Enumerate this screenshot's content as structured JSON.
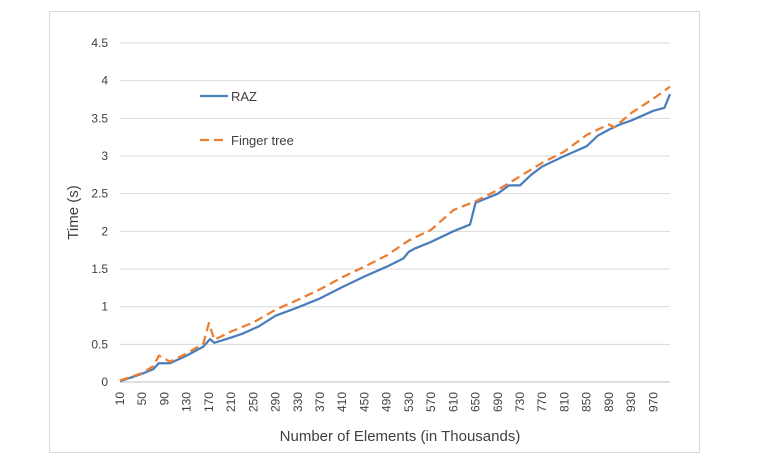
{
  "chart_data": {
    "type": "line",
    "title": "",
    "xlabel": "Number of Elements (in Thousands)",
    "ylabel": "Time (s)",
    "xlim": [
      10,
      1000
    ],
    "ylim": [
      0,
      4.5
    ],
    "yticks": [
      "0",
      "0.5",
      "1",
      "1.5",
      "2",
      "2.5",
      "3",
      "3.5",
      "4",
      "4.5"
    ],
    "xticks": [
      "10",
      "50",
      "90",
      "130",
      "170",
      "210",
      "250",
      "290",
      "330",
      "370",
      "410",
      "450",
      "490",
      "530",
      "570",
      "610",
      "650",
      "690",
      "730",
      "770",
      "810",
      "850",
      "890",
      "930",
      "970"
    ],
    "grid": "horizontal",
    "legend": "upper-left inside plot",
    "series": [
      {
        "name": "RAZ",
        "color": "#4a7ebb",
        "dash": "solid",
        "points": [
          [
            10,
            0.01
          ],
          [
            30,
            0.06
          ],
          [
            50,
            0.11
          ],
          [
            70,
            0.17
          ],
          [
            80,
            0.25
          ],
          [
            100,
            0.25
          ],
          [
            130,
            0.35
          ],
          [
            160,
            0.47
          ],
          [
            172,
            0.57
          ],
          [
            180,
            0.52
          ],
          [
            210,
            0.59
          ],
          [
            230,
            0.64
          ],
          [
            260,
            0.74
          ],
          [
            290,
            0.88
          ],
          [
            330,
            0.99
          ],
          [
            370,
            1.11
          ],
          [
            410,
            1.26
          ],
          [
            450,
            1.4
          ],
          [
            490,
            1.53
          ],
          [
            520,
            1.64
          ],
          [
            530,
            1.73
          ],
          [
            540,
            1.77
          ],
          [
            570,
            1.86
          ],
          [
            610,
            2.0
          ],
          [
            640,
            2.09
          ],
          [
            650,
            2.38
          ],
          [
            670,
            2.44
          ],
          [
            690,
            2.5
          ],
          [
            710,
            2.61
          ],
          [
            730,
            2.61
          ],
          [
            750,
            2.75
          ],
          [
            770,
            2.86
          ],
          [
            810,
            3.0
          ],
          [
            850,
            3.13
          ],
          [
            870,
            3.27
          ],
          [
            890,
            3.35
          ],
          [
            910,
            3.42
          ],
          [
            930,
            3.47
          ],
          [
            970,
            3.6
          ],
          [
            990,
            3.64
          ],
          [
            1000,
            3.82
          ]
        ]
      },
      {
        "name": "Finger tree",
        "color": "#ed7d31",
        "dash": "dashed",
        "points": [
          [
            10,
            0.02
          ],
          [
            50,
            0.12
          ],
          [
            70,
            0.21
          ],
          [
            80,
            0.35
          ],
          [
            100,
            0.27
          ],
          [
            130,
            0.38
          ],
          [
            160,
            0.51
          ],
          [
            170,
            0.78
          ],
          [
            180,
            0.56
          ],
          [
            210,
            0.67
          ],
          [
            250,
            0.79
          ],
          [
            290,
            0.96
          ],
          [
            330,
            1.09
          ],
          [
            370,
            1.23
          ],
          [
            410,
            1.39
          ],
          [
            450,
            1.53
          ],
          [
            490,
            1.68
          ],
          [
            530,
            1.88
          ],
          [
            570,
            2.02
          ],
          [
            610,
            2.28
          ],
          [
            650,
            2.4
          ],
          [
            690,
            2.55
          ],
          [
            730,
            2.73
          ],
          [
            770,
            2.91
          ],
          [
            810,
            3.06
          ],
          [
            850,
            3.28
          ],
          [
            890,
            3.42
          ],
          [
            900,
            3.38
          ],
          [
            930,
            3.57
          ],
          [
            970,
            3.76
          ],
          [
            1000,
            3.92
          ]
        ]
      }
    ]
  }
}
